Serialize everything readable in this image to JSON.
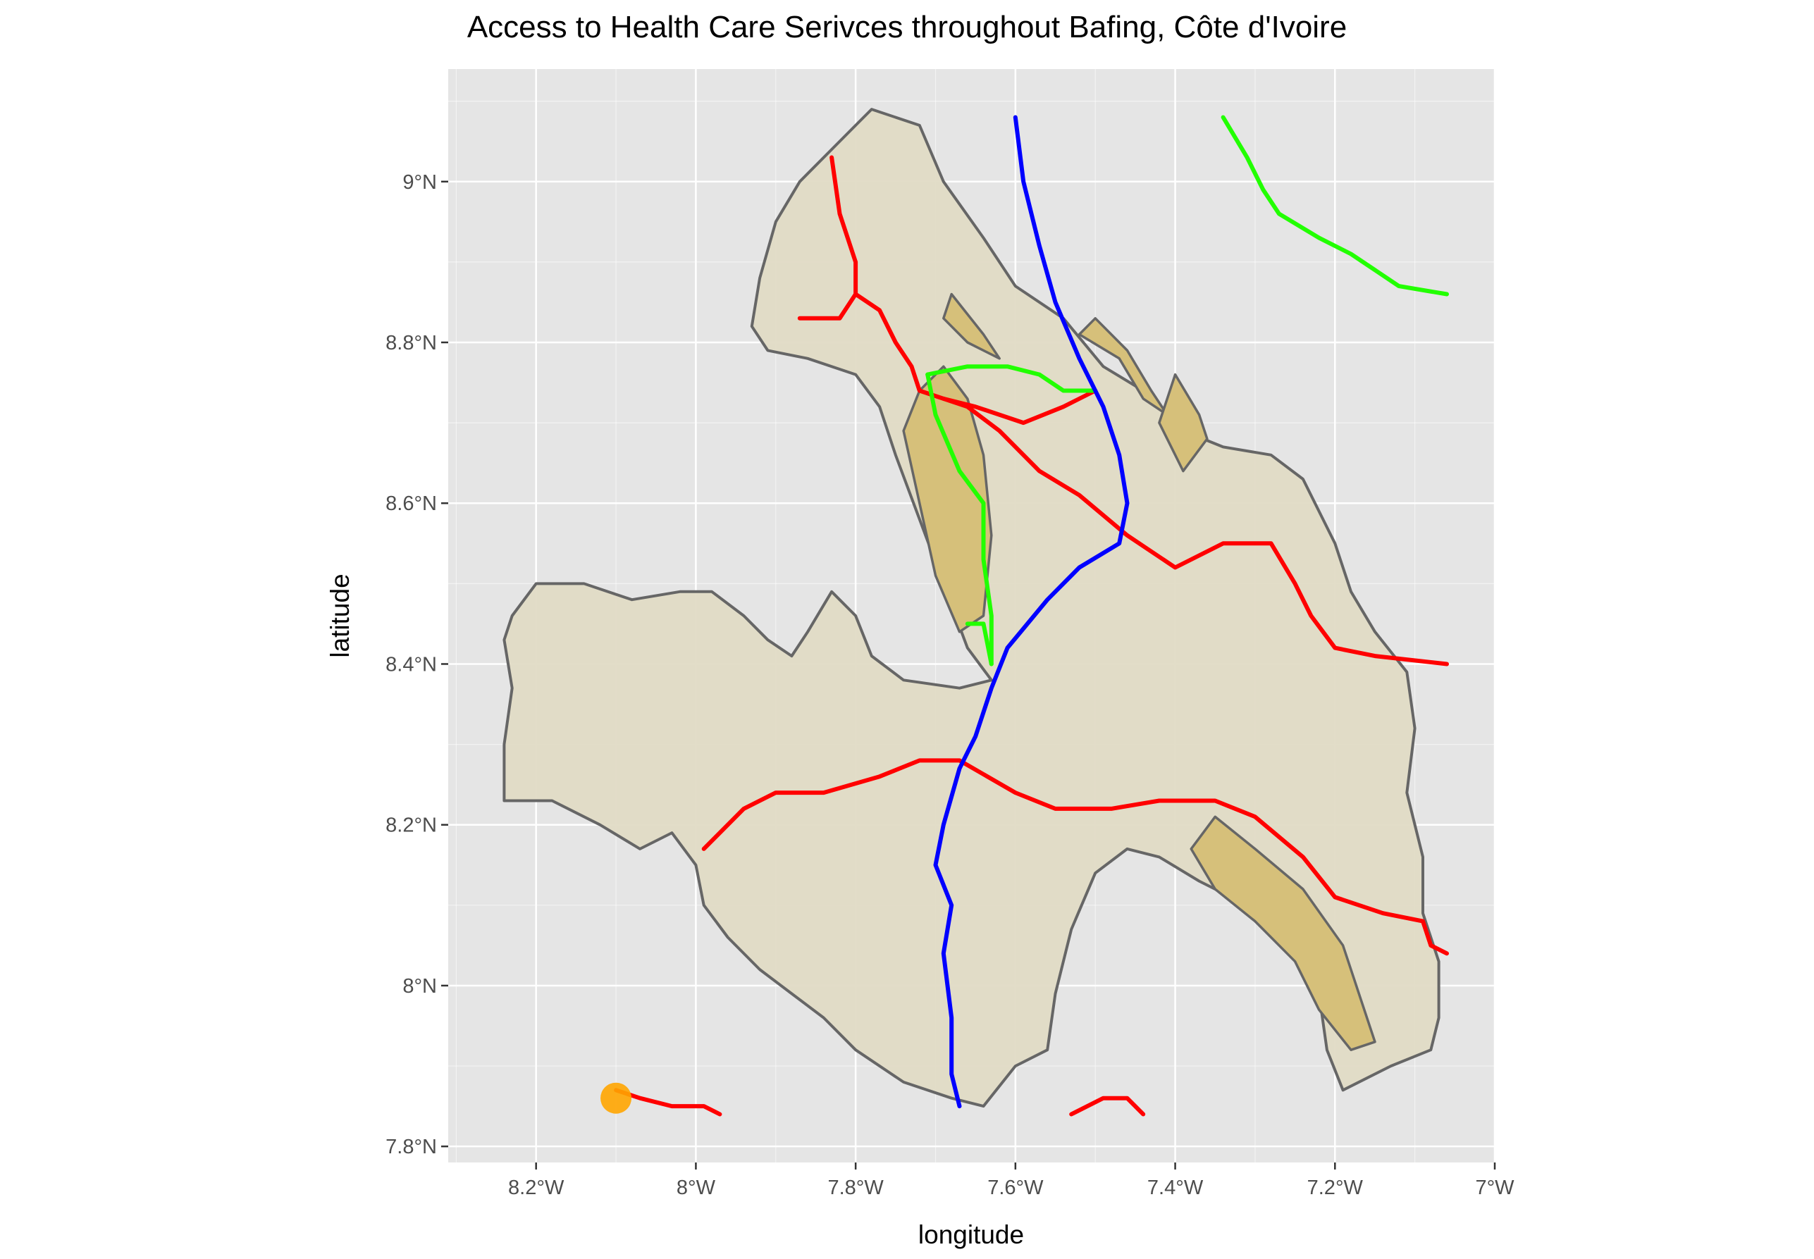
{
  "title": "Access to Health Care Serivces throughout Bafing, Côte d'Ivoire",
  "axes": {
    "x_title": "longitude",
    "y_title": "latitude",
    "x_ticks": [
      {
        "value": -8.2,
        "label": "8.2°W"
      },
      {
        "value": -8.0,
        "label": "8°W"
      },
      {
        "value": -7.8,
        "label": "7.8°W"
      },
      {
        "value": -7.6,
        "label": "7.6°W"
      },
      {
        "value": -7.4,
        "label": "7.4°W"
      },
      {
        "value": -7.2,
        "label": "7.2°W"
      },
      {
        "value": -7.0,
        "label": "7°W"
      }
    ],
    "y_ticks": [
      {
        "value": 7.8,
        "label": "7.8°N"
      },
      {
        "value": 8.0,
        "label": "8°N"
      },
      {
        "value": 8.2,
        "label": "8.2°N"
      },
      {
        "value": 8.4,
        "label": "8.4°N"
      },
      {
        "value": 8.6,
        "label": "8.6°N"
      },
      {
        "value": 8.8,
        "label": "8.8°N"
      },
      {
        "value": 9.0,
        "label": "9°N"
      }
    ],
    "x_range": [
      -8.31,
      -7.0
    ],
    "y_range": [
      7.78,
      9.14
    ]
  },
  "colors": {
    "panel_background": "#e5e5e5",
    "gridline": "#ffffff",
    "region_fill": "#e0dbc5",
    "region_outline": "#666666",
    "highland_fill": "#d6c07a",
    "road_red": "#ff0000",
    "road_green": "#22ff00",
    "road_blue": "#0000ff",
    "facility_marker": "#ffa500"
  },
  "chart_data": {
    "type": "map",
    "title": "Access to Health Care Serivces throughout Bafing, Côte d'Ivoire",
    "xlabel": "longitude",
    "ylabel": "latitude",
    "grid": true,
    "region": [
      [
        -7.78,
        9.09
      ],
      [
        -7.72,
        9.07
      ],
      [
        -7.69,
        9.0
      ],
      [
        -7.64,
        8.93
      ],
      [
        -7.6,
        8.87
      ],
      [
        -7.54,
        8.83
      ],
      [
        -7.49,
        8.77
      ],
      [
        -7.44,
        8.74
      ],
      [
        -7.39,
        8.69
      ],
      [
        -7.34,
        8.67
      ],
      [
        -7.28,
        8.66
      ],
      [
        -7.24,
        8.63
      ],
      [
        -7.22,
        8.59
      ],
      [
        -7.2,
        8.55
      ],
      [
        -7.18,
        8.49
      ],
      [
        -7.15,
        8.44
      ],
      [
        -7.11,
        8.39
      ],
      [
        -7.1,
        8.32
      ],
      [
        -7.11,
        8.24
      ],
      [
        -7.09,
        8.16
      ],
      [
        -7.09,
        8.09
      ],
      [
        -7.07,
        8.03
      ],
      [
        -7.07,
        7.96
      ],
      [
        -7.08,
        7.92
      ],
      [
        -7.13,
        7.9
      ],
      [
        -7.19,
        7.87
      ],
      [
        -7.21,
        7.92
      ],
      [
        -7.22,
        7.99
      ],
      [
        -7.25,
        8.05
      ],
      [
        -7.31,
        8.1
      ],
      [
        -7.37,
        8.13
      ],
      [
        -7.42,
        8.16
      ],
      [
        -7.46,
        8.17
      ],
      [
        -7.5,
        8.14
      ],
      [
        -7.53,
        8.07
      ],
      [
        -7.55,
        7.99
      ],
      [
        -7.56,
        7.92
      ],
      [
        -7.6,
        7.9
      ],
      [
        -7.64,
        7.85
      ],
      [
        -7.68,
        7.86
      ],
      [
        -7.74,
        7.88
      ],
      [
        -7.8,
        7.92
      ],
      [
        -7.84,
        7.96
      ],
      [
        -7.88,
        7.99
      ],
      [
        -7.92,
        8.02
      ],
      [
        -7.96,
        8.06
      ],
      [
        -7.99,
        8.1
      ],
      [
        -8.0,
        8.15
      ],
      [
        -8.03,
        8.19
      ],
      [
        -8.07,
        8.17
      ],
      [
        -8.12,
        8.2
      ],
      [
        -8.18,
        8.23
      ],
      [
        -8.24,
        8.23
      ],
      [
        -8.24,
        8.3
      ],
      [
        -8.23,
        8.37
      ],
      [
        -8.24,
        8.43
      ],
      [
        -8.23,
        8.46
      ],
      [
        -8.2,
        8.5
      ],
      [
        -8.14,
        8.5
      ],
      [
        -8.08,
        8.48
      ],
      [
        -8.02,
        8.49
      ],
      [
        -7.98,
        8.49
      ],
      [
        -7.94,
        8.46
      ],
      [
        -7.91,
        8.43
      ],
      [
        -7.88,
        8.41
      ],
      [
        -7.86,
        8.44
      ],
      [
        -7.83,
        8.49
      ],
      [
        -7.8,
        8.46
      ],
      [
        -7.78,
        8.41
      ],
      [
        -7.74,
        8.38
      ],
      [
        -7.67,
        8.37
      ],
      [
        -7.63,
        8.38
      ],
      [
        -7.66,
        8.42
      ],
      [
        -7.69,
        8.5
      ],
      [
        -7.72,
        8.58
      ],
      [
        -7.75,
        8.66
      ],
      [
        -7.77,
        8.72
      ],
      [
        -7.8,
        8.76
      ],
      [
        -7.86,
        8.78
      ],
      [
        -7.91,
        8.79
      ],
      [
        -7.93,
        8.82
      ],
      [
        -7.92,
        8.88
      ],
      [
        -7.9,
        8.95
      ],
      [
        -7.87,
        9.0
      ],
      [
        -7.83,
        9.04
      ],
      [
        -7.8,
        9.07
      ]
    ],
    "highlands": [
      [
        [
          -7.69,
          8.77
        ],
        [
          -7.66,
          8.73
        ],
        [
          -7.64,
          8.66
        ],
        [
          -7.63,
          8.56
        ],
        [
          -7.64,
          8.46
        ],
        [
          -7.67,
          8.44
        ],
        [
          -7.7,
          8.51
        ],
        [
          -7.72,
          8.6
        ],
        [
          -7.74,
          8.69
        ],
        [
          -7.72,
          8.74
        ]
      ],
      [
        [
          -7.52,
          8.81
        ],
        [
          -7.47,
          8.78
        ],
        [
          -7.44,
          8.73
        ],
        [
          -7.41,
          8.71
        ],
        [
          -7.43,
          8.74
        ],
        [
          -7.46,
          8.79
        ],
        [
          -7.5,
          8.83
        ]
      ],
      [
        [
          -7.68,
          8.86
        ],
        [
          -7.64,
          8.81
        ],
        [
          -7.62,
          8.78
        ],
        [
          -7.66,
          8.8
        ],
        [
          -7.69,
          8.83
        ]
      ],
      [
        [
          -7.4,
          8.76
        ],
        [
          -7.37,
          8.71
        ],
        [
          -7.36,
          8.68
        ],
        [
          -7.39,
          8.64
        ],
        [
          -7.42,
          8.7
        ]
      ],
      [
        [
          -7.35,
          8.21
        ],
        [
          -7.3,
          8.17
        ],
        [
          -7.24,
          8.12
        ],
        [
          -7.19,
          8.05
        ],
        [
          -7.17,
          7.99
        ],
        [
          -7.15,
          7.93
        ],
        [
          -7.18,
          7.92
        ],
        [
          -7.22,
          7.97
        ],
        [
          -7.25,
          8.03
        ],
        [
          -7.3,
          8.08
        ],
        [
          -7.35,
          8.12
        ],
        [
          -7.38,
          8.17
        ]
      ]
    ],
    "roads": [
      {
        "color": "red",
        "points": [
          [
            -7.83,
            9.03
          ],
          [
            -7.82,
            8.96
          ],
          [
            -7.8,
            8.9
          ],
          [
            -7.8,
            8.86
          ],
          [
            -7.77,
            8.84
          ],
          [
            -7.75,
            8.8
          ],
          [
            -7.73,
            8.77
          ],
          [
            -7.72,
            8.74
          ],
          [
            -7.66,
            8.72
          ],
          [
            -7.62,
            8.69
          ],
          [
            -7.57,
            8.64
          ],
          [
            -7.52,
            8.61
          ],
          [
            -7.46,
            8.56
          ],
          [
            -7.4,
            8.52
          ],
          [
            -7.34,
            8.55
          ],
          [
            -7.28,
            8.55
          ],
          [
            -7.25,
            8.5
          ],
          [
            -7.23,
            8.46
          ],
          [
            -7.2,
            8.42
          ],
          [
            -7.15,
            8.41
          ],
          [
            -7.06,
            8.4
          ]
        ]
      },
      {
        "color": "red",
        "points": [
          [
            -7.87,
            8.83
          ],
          [
            -7.82,
            8.83
          ],
          [
            -7.8,
            8.86
          ]
        ]
      },
      {
        "color": "red",
        "points": [
          [
            -7.69,
            8.73
          ],
          [
            -7.65,
            8.72
          ],
          [
            -7.59,
            8.7
          ],
          [
            -7.54,
            8.72
          ],
          [
            -7.5,
            8.74
          ]
        ]
      },
      {
        "color": "red",
        "points": [
          [
            -7.99,
            8.17
          ],
          [
            -7.94,
            8.22
          ],
          [
            -7.9,
            8.24
          ],
          [
            -7.84,
            8.24
          ],
          [
            -7.77,
            8.26
          ],
          [
            -7.72,
            8.28
          ],
          [
            -7.67,
            8.28
          ],
          [
            -7.6,
            8.24
          ],
          [
            -7.55,
            8.22
          ],
          [
            -7.48,
            8.22
          ],
          [
            -7.42,
            8.23
          ],
          [
            -7.35,
            8.23
          ],
          [
            -7.3,
            8.21
          ],
          [
            -7.24,
            8.16
          ],
          [
            -7.2,
            8.11
          ],
          [
            -7.14,
            8.09
          ],
          [
            -7.09,
            8.08
          ],
          [
            -7.08,
            8.05
          ],
          [
            -7.06,
            8.04
          ]
        ]
      },
      {
        "color": "red",
        "points": [
          [
            -8.1,
            7.87
          ],
          [
            -8.07,
            7.86
          ],
          [
            -8.03,
            7.85
          ],
          [
            -7.99,
            7.85
          ],
          [
            -7.97,
            7.84
          ]
        ]
      },
      {
        "color": "red",
        "points": [
          [
            -7.53,
            7.84
          ],
          [
            -7.49,
            7.86
          ],
          [
            -7.46,
            7.86
          ],
          [
            -7.44,
            7.84
          ]
        ]
      },
      {
        "color": "green",
        "points": [
          [
            -7.34,
            9.08
          ],
          [
            -7.31,
            9.03
          ],
          [
            -7.29,
            8.99
          ],
          [
            -7.27,
            8.96
          ],
          [
            -7.22,
            8.93
          ],
          [
            -7.18,
            8.91
          ],
          [
            -7.15,
            8.89
          ],
          [
            -7.12,
            8.87
          ],
          [
            -7.06,
            8.86
          ]
        ]
      },
      {
        "color": "green",
        "points": [
          [
            -7.71,
            8.76
          ],
          [
            -7.66,
            8.77
          ],
          [
            -7.61,
            8.77
          ],
          [
            -7.57,
            8.76
          ],
          [
            -7.54,
            8.74
          ],
          [
            -7.5,
            8.74
          ]
        ]
      },
      {
        "color": "green",
        "points": [
          [
            -7.71,
            8.76
          ],
          [
            -7.7,
            8.71
          ],
          [
            -7.67,
            8.64
          ],
          [
            -7.64,
            8.6
          ],
          [
            -7.64,
            8.53
          ],
          [
            -7.63,
            8.46
          ],
          [
            -7.63,
            8.4
          ]
        ]
      },
      {
        "color": "green",
        "points": [
          [
            -7.66,
            8.45
          ],
          [
            -7.64,
            8.45
          ],
          [
            -7.63,
            8.4
          ]
        ]
      },
      {
        "color": "blue",
        "points": [
          [
            -7.6,
            9.08
          ],
          [
            -7.59,
            9.0
          ],
          [
            -7.57,
            8.92
          ],
          [
            -7.55,
            8.85
          ],
          [
            -7.52,
            8.78
          ],
          [
            -7.49,
            8.72
          ],
          [
            -7.47,
            8.66
          ],
          [
            -7.46,
            8.6
          ],
          [
            -7.47,
            8.55
          ],
          [
            -7.52,
            8.52
          ],
          [
            -7.56,
            8.48
          ],
          [
            -7.61,
            8.42
          ],
          [
            -7.63,
            8.37
          ],
          [
            -7.65,
            8.31
          ],
          [
            -7.67,
            8.27
          ],
          [
            -7.69,
            8.2
          ],
          [
            -7.7,
            8.15
          ],
          [
            -7.68,
            8.1
          ],
          [
            -7.69,
            8.04
          ],
          [
            -7.68,
            7.96
          ],
          [
            -7.68,
            7.89
          ],
          [
            -7.67,
            7.85
          ]
        ]
      }
    ],
    "facilities": [
      {
        "lon": -8.1,
        "lat": 7.86
      }
    ]
  }
}
